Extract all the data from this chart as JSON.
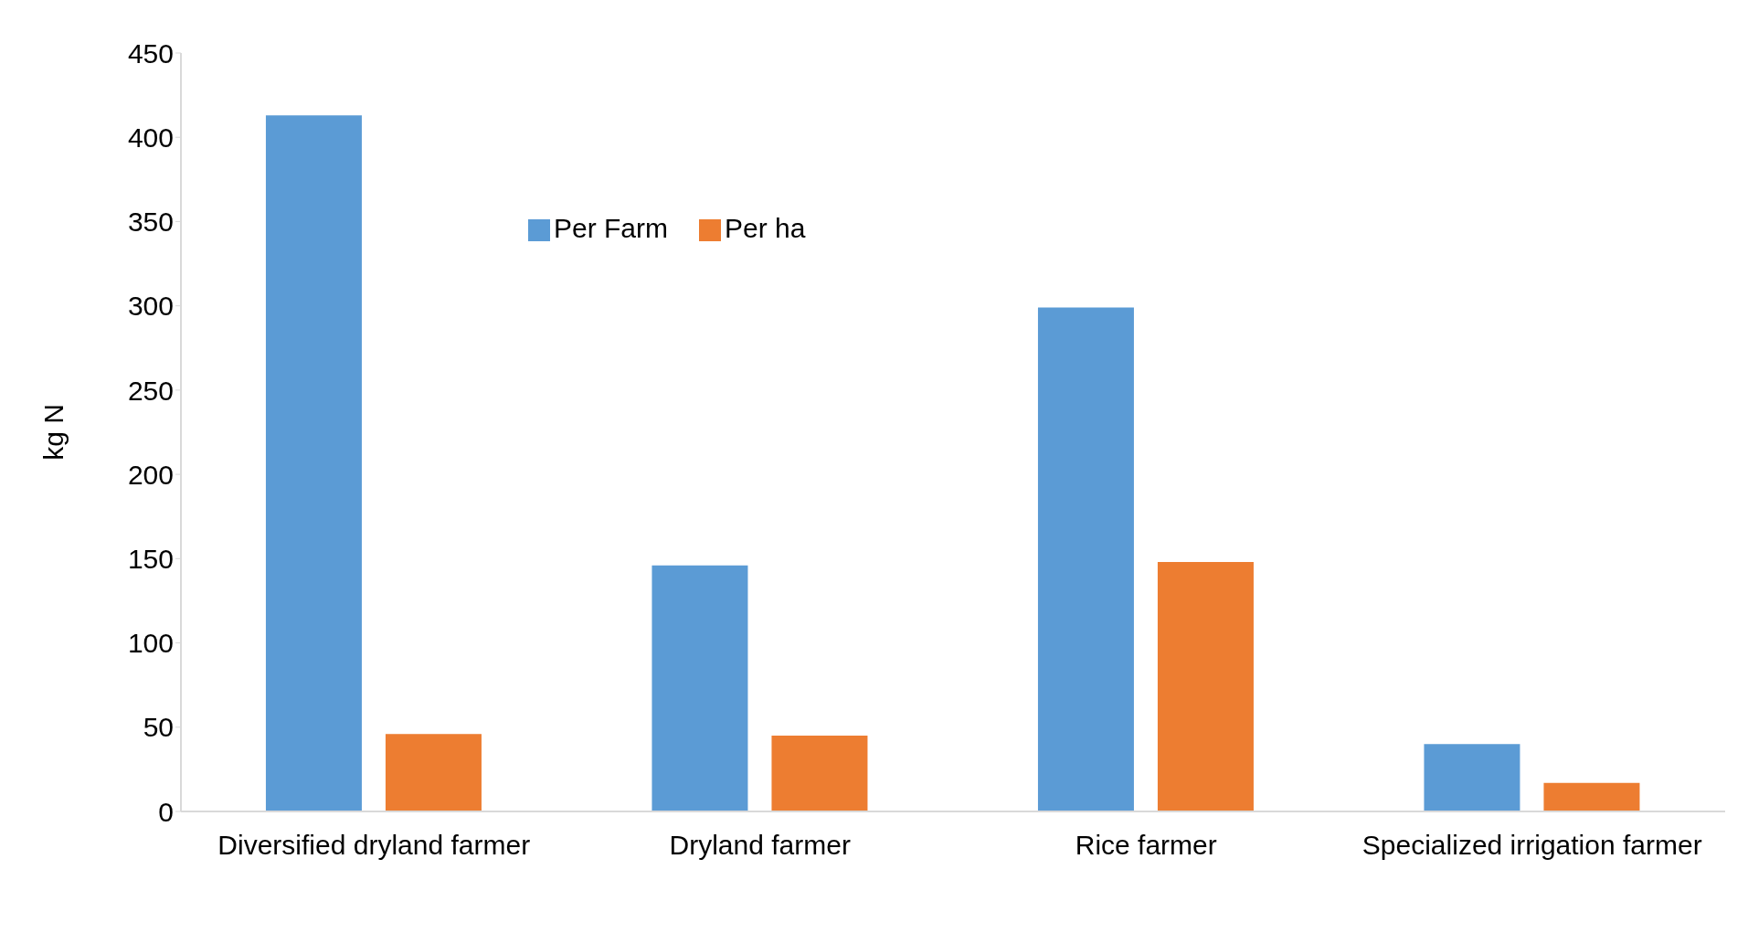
{
  "chart_data": {
    "type": "bar",
    "ylabel": "kg N",
    "categories": [
      "Diversified dryland farmer",
      "Dryland farmer",
      "Rice farmer",
      "Specialized irrigation farmer"
    ],
    "series": [
      {
        "name": "Per Farm",
        "color": "#5b9bd5",
        "values": [
          413,
          146,
          299,
          40
        ]
      },
      {
        "name": "Per ha",
        "color": "#ed7d31",
        "values": [
          46,
          45,
          148,
          17
        ]
      }
    ],
    "ylim": [
      0,
      450
    ],
    "yticks": [
      0,
      50,
      100,
      150,
      200,
      250,
      300,
      350,
      400,
      450
    ],
    "grid": false,
    "legend": "top"
  }
}
